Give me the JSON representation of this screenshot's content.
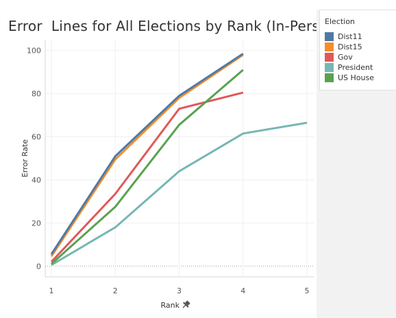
{
  "chart_data": {
    "type": "line",
    "title": "Error  Lines for All Elections by Rank (In-Person)",
    "xlabel": "Rank",
    "ylabel": "Error Rate",
    "x_ticks": [
      "1",
      "2",
      "3",
      "4",
      "5"
    ],
    "y_ticks": [
      "0",
      "20",
      "40",
      "60",
      "80",
      "100"
    ],
    "xlim": [
      1,
      5
    ],
    "ylim": [
      -5,
      105
    ],
    "grid": true,
    "legend": {
      "title": "Election",
      "placement": "right"
    },
    "series": [
      {
        "name": "Dist11",
        "color": "#4e79a7",
        "x": [
          1,
          2,
          3,
          4
        ],
        "y": [
          5.5,
          51,
          79,
          98.5
        ]
      },
      {
        "name": "Dist15",
        "color": "#f28e2b",
        "x": [
          1,
          2,
          3,
          4
        ],
        "y": [
          4.5,
          49.5,
          78,
          98
        ]
      },
      {
        "name": "Gov",
        "color": "#e15759",
        "x": [
          1,
          2,
          3,
          4
        ],
        "y": [
          2,
          33.5,
          73,
          80.5
        ]
      },
      {
        "name": "President",
        "color": "#76b7b2",
        "x": [
          1,
          2,
          3,
          4,
          5
        ],
        "y": [
          0.5,
          18,
          44,
          61.5,
          66.5
        ]
      },
      {
        "name": "US House",
        "color": "#59a14f",
        "x": [
          1,
          2,
          3,
          4
        ],
        "y": [
          1,
          27.5,
          65.5,
          91
        ]
      }
    ]
  }
}
